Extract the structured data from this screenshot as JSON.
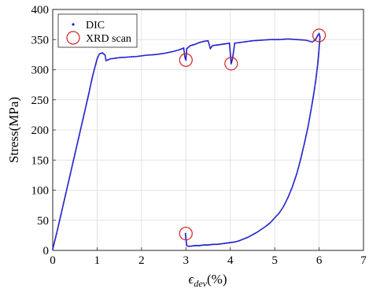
{
  "chart_data": {
    "type": "scatter",
    "title": "",
    "xlabel_main": "ϵ",
    "xlabel_sub": "dev",
    "xlabel_unit": "(%)",
    "ylabel": "Stress(MPa)",
    "xlim": [
      0,
      7
    ],
    "ylim": [
      0,
      400
    ],
    "xticks": [
      "0",
      "1",
      "2",
      "3",
      "4",
      "5",
      "6",
      "7"
    ],
    "yticks": [
      "0",
      "50",
      "100",
      "150",
      "200",
      "250",
      "300",
      "350",
      "400"
    ],
    "grid": true,
    "legend_position": "top-left",
    "colors": {
      "dic": "#1f1fcc",
      "xrd": "#d42020"
    },
    "series": [
      {
        "name": "DIC",
        "marker": "dot",
        "points": [
          [
            0.0,
            2
          ],
          [
            0.1,
            32
          ],
          [
            0.2,
            64
          ],
          [
            0.3,
            96
          ],
          [
            0.4,
            128
          ],
          [
            0.5,
            160
          ],
          [
            0.6,
            192
          ],
          [
            0.7,
            224
          ],
          [
            0.8,
            256
          ],
          [
            0.9,
            290
          ],
          [
            1.0,
            318
          ],
          [
            1.05,
            326
          ],
          [
            1.12,
            328
          ],
          [
            1.18,
            324
          ],
          [
            1.2,
            315
          ],
          [
            1.3,
            318
          ],
          [
            1.5,
            320
          ],
          [
            1.7,
            321
          ],
          [
            1.9,
            322
          ],
          [
            2.1,
            324
          ],
          [
            2.3,
            325
          ],
          [
            2.5,
            327
          ],
          [
            2.7,
            330
          ],
          [
            2.85,
            333
          ],
          [
            2.95,
            336
          ],
          [
            2.98,
            320
          ],
          [
            3.0,
            316
          ],
          [
            3.02,
            335
          ],
          [
            3.1,
            340
          ],
          [
            3.2,
            342
          ],
          [
            3.3,
            345
          ],
          [
            3.4,
            347
          ],
          [
            3.5,
            348
          ],
          [
            3.55,
            335
          ],
          [
            3.6,
            340
          ],
          [
            3.7,
            341
          ],
          [
            3.8,
            342
          ],
          [
            3.9,
            343
          ],
          [
            3.98,
            344
          ],
          [
            4.0,
            328
          ],
          [
            4.02,
            310
          ],
          [
            4.05,
            318
          ],
          [
            4.1,
            344
          ],
          [
            4.3,
            346
          ],
          [
            4.5,
            348
          ],
          [
            4.7,
            349
          ],
          [
            4.9,
            350
          ],
          [
            5.1,
            350
          ],
          [
            5.3,
            351
          ],
          [
            5.5,
            350
          ],
          [
            5.7,
            349
          ],
          [
            5.85,
            346
          ],
          [
            5.92,
            350
          ],
          [
            5.97,
            357
          ],
          [
            6.0,
            360
          ],
          [
            6.02,
            354
          ],
          [
            6.0,
            335
          ],
          [
            5.97,
            310
          ],
          [
            5.93,
            285
          ],
          [
            5.88,
            260
          ],
          [
            5.83,
            238
          ],
          [
            5.75,
            205
          ],
          [
            5.67,
            178
          ],
          [
            5.58,
            150
          ],
          [
            5.5,
            128
          ],
          [
            5.4,
            106
          ],
          [
            5.3,
            88
          ],
          [
            5.2,
            73
          ],
          [
            5.1,
            62
          ],
          [
            5.0,
            54
          ],
          [
            4.9,
            46
          ],
          [
            4.8,
            40
          ],
          [
            4.7,
            35
          ],
          [
            4.6,
            30
          ],
          [
            4.5,
            26
          ],
          [
            4.4,
            22
          ],
          [
            4.3,
            19
          ],
          [
            4.2,
            16
          ],
          [
            4.1,
            14
          ],
          [
            4.0,
            13
          ],
          [
            3.9,
            12
          ],
          [
            3.8,
            11
          ],
          [
            3.7,
            10
          ],
          [
            3.6,
            10
          ],
          [
            3.5,
            9
          ],
          [
            3.4,
            9
          ],
          [
            3.3,
            8
          ],
          [
            3.2,
            8
          ],
          [
            3.1,
            7
          ],
          [
            3.05,
            7
          ],
          [
            3.02,
            8
          ],
          [
            3.0,
            20
          ],
          [
            2.99,
            28
          ]
        ]
      },
      {
        "name": "XRD scan",
        "marker": "circle",
        "points": [
          [
            3.0,
            316
          ],
          [
            4.02,
            310
          ],
          [
            6.0,
            357
          ],
          [
            3.0,
            28
          ]
        ]
      }
    ]
  }
}
